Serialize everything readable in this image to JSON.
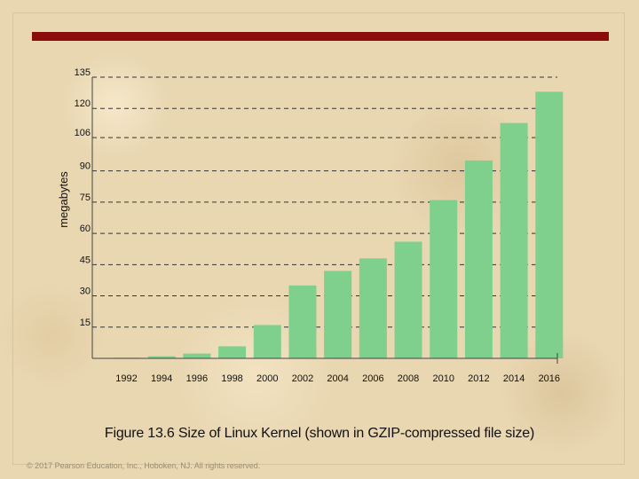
{
  "chart_data": {
    "type": "bar",
    "ylabel": "megabytes",
    "xlabel": "",
    "categories": [
      "1992",
      "1994",
      "1996",
      "1998",
      "2000",
      "2002",
      "2004",
      "2006",
      "2008",
      "2010",
      "2012",
      "2014",
      "2016"
    ],
    "values": [
      0.3,
      1,
      2.3,
      5.8,
      16,
      35,
      42,
      48,
      56,
      76,
      95,
      113,
      128
    ],
    "yticks": [
      15,
      30,
      45,
      60,
      75,
      90,
      106,
      120,
      135
    ],
    "ylim": [
      0,
      135
    ],
    "bar_color": "#7fcf8d",
    "grid": "dashed horizontal"
  },
  "caption": "Figure 13.6 Size of Linux Kernel (shown in GZIP-compressed file size)",
  "copyright": "© 2017 Pearson Education, Inc., Hoboken, NJ. All rights reserved.",
  "colors": {
    "accent_bar": "#8b0c0c",
    "background": "#e9d7b2"
  }
}
